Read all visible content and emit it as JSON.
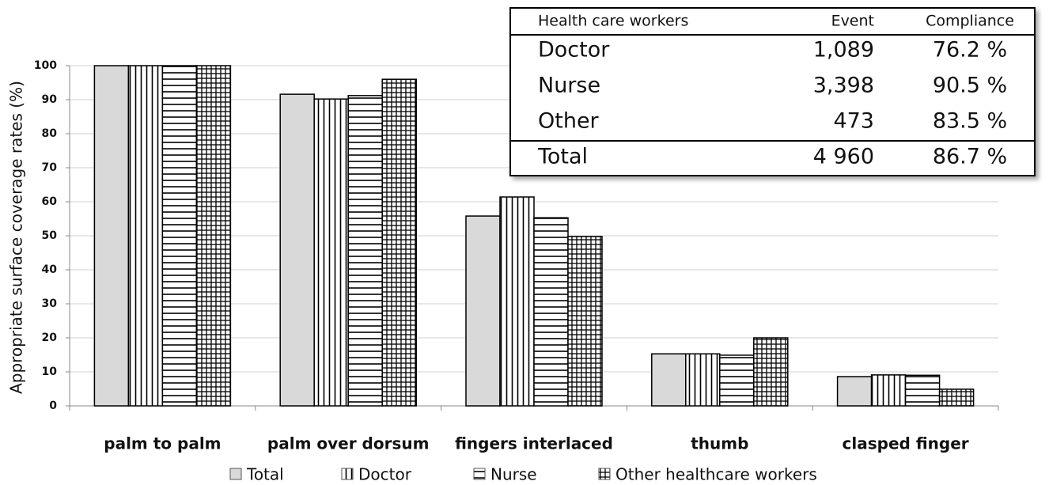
{
  "chart_data": {
    "type": "bar",
    "ylabel": "Appropriate surface coverage rates (%)",
    "categories": [
      "palm to palm",
      "palm over dorsum",
      "fingers interlaced",
      "thumb",
      "clasped finger"
    ],
    "series": [
      {
        "name": "Total",
        "color": "#d9d9d9",
        "pattern": "solid",
        "values": [
          100,
          91.6,
          55.8,
          15.3,
          8.6
        ]
      },
      {
        "name": "Doctor",
        "color": "#ffffff",
        "pattern": "vertical",
        "values": [
          100,
          90.2,
          61.4,
          15.3,
          9.1
        ]
      },
      {
        "name": "Nurse",
        "color": "#ffffff",
        "pattern": "horizontal",
        "values": [
          100,
          91.2,
          55.3,
          14.9,
          9.0
        ]
      },
      {
        "name": "Other healthcare workers",
        "color": "#ffffff",
        "pattern": "grid",
        "values": [
          100,
          96.0,
          49.8,
          20.0,
          4.9
        ]
      }
    ],
    "ylim": [
      0,
      100
    ],
    "yticks": [
      0,
      10,
      20,
      30,
      40,
      50,
      60,
      70,
      80,
      90,
      100
    ],
    "grid": true,
    "legend": "bottom"
  },
  "table": {
    "header": [
      "Health care workers",
      "Event",
      "Compliance"
    ],
    "rows": [
      [
        "Doctor",
        "1,089",
        "76.2 %"
      ],
      [
        "Nurse",
        "3,398",
        "90.5 %"
      ],
      [
        "Other",
        "473",
        "83.5 %"
      ]
    ],
    "total": [
      "Total",
      "4 960",
      "86.7 %"
    ]
  }
}
